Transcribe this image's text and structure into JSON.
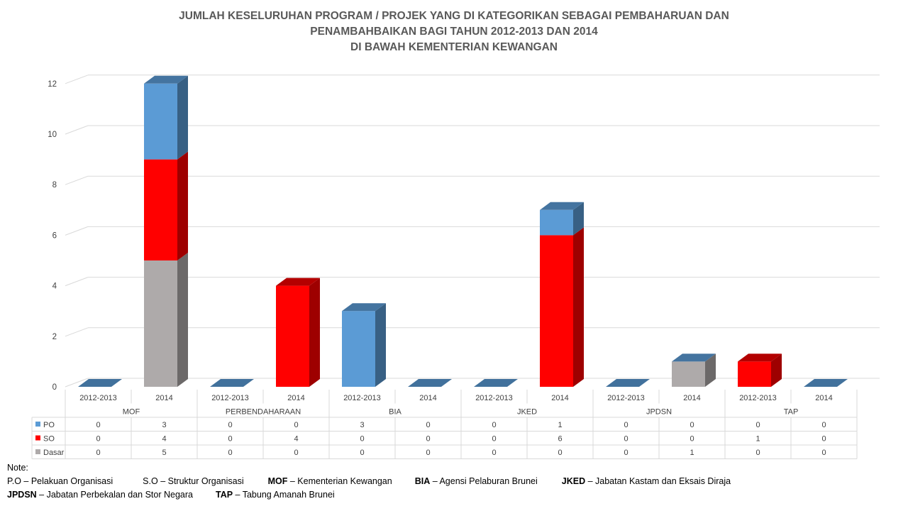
{
  "chart_data": {
    "type": "bar",
    "stacked": true,
    "three_d": true,
    "title_lines": [
      "JUMLAH KESELURUHAN PROGRAM / PROJEK YANG DI KATEGORIKAN SEBAGAI PEMBAHARUAN DAN",
      "PENAMBAHBAIKAN BAGI TAHUN 2012-2013 DAN 2014",
      "DI BAWAH KEMENTERIAN KEWANGAN"
    ],
    "y_ticks": [
      "0",
      "2",
      "4",
      "6",
      "8",
      "10",
      "12"
    ],
    "ylim": [
      0,
      12
    ],
    "groups": [
      {
        "name": "MOF",
        "periods": [
          "2012-2013",
          "2014"
        ]
      },
      {
        "name": "PERBENDAHARAAN",
        "periods": [
          "2012-2013",
          "2014"
        ]
      },
      {
        "name": "BIA",
        "periods": [
          "2012-2013",
          "2014"
        ]
      },
      {
        "name": "JKED",
        "periods": [
          "2012-2013",
          "2014"
        ]
      },
      {
        "name": "JPDSN",
        "periods": [
          "2012-2013",
          "2014"
        ]
      },
      {
        "name": "TAP",
        "periods": [
          "2012-2013",
          "2014"
        ]
      }
    ],
    "series": [
      {
        "name": "PO",
        "color": "#5b9bd5",
        "values": [
          0,
          3,
          0,
          0,
          3,
          0,
          0,
          1,
          0,
          0,
          0,
          0
        ]
      },
      {
        "name": "SO",
        "color": "#ff0000",
        "values": [
          0,
          4,
          0,
          4,
          0,
          0,
          0,
          6,
          0,
          0,
          1,
          0
        ]
      },
      {
        "name": "Dasar",
        "color": "#aeaaaa",
        "values": [
          0,
          5,
          0,
          0,
          0,
          0,
          0,
          0,
          0,
          1,
          0,
          0
        ]
      }
    ],
    "grid": true,
    "data_table": true
  },
  "notes": {
    "heading": "Note:",
    "row1": [
      {
        "abbr": "P.O",
        "bold": false,
        "desc": " – Pelakuan Organisasi"
      },
      {
        "abbr": "S.O",
        "bold": false,
        "desc": " – Struktur Organisasi"
      },
      {
        "abbr": "MOF",
        "bold": true,
        "desc": " – Kementerian Kewangan"
      },
      {
        "abbr": "BIA",
        "bold": true,
        "desc": " – Agensi Pelaburan Brunei"
      },
      {
        "abbr": "JKED",
        "bold": true,
        "desc": " – Jabatan Kastam dan Eksais Diraja"
      }
    ],
    "row2": [
      {
        "abbr": "JPDSN",
        "bold": true,
        "desc": " – Jabatan Perbekalan dan Stor Negara"
      },
      {
        "abbr": "TAP",
        "bold": true,
        "desc": " – Tabung Amanah Brunei"
      }
    ]
  }
}
